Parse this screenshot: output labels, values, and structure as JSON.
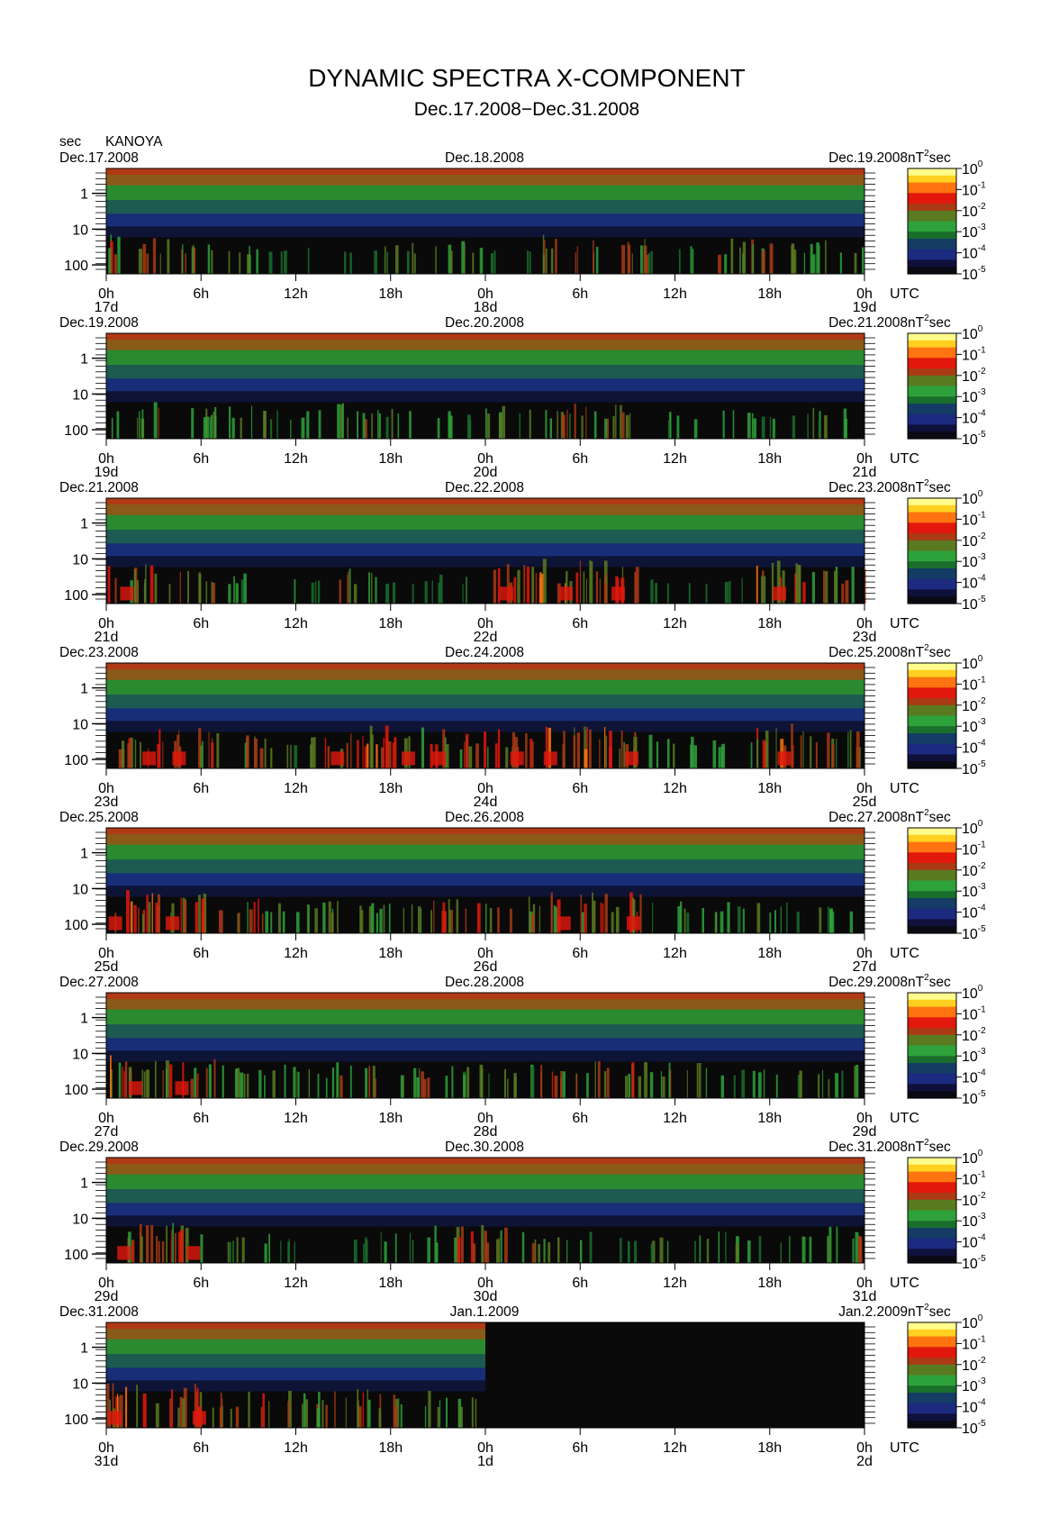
{
  "title": "DYNAMIC SPECTRA X-COMPONENT",
  "subtitle": "Dec.17.2008−Dec.31.2008",
  "station": "KANOYA",
  "y_unit": "sec",
  "colorbar_unit": "nT",
  "colorbar_unit_sup": "2",
  "colorbar_unit_suffix": "sec",
  "time_zone": "UTC",
  "colors": {
    "background": "#ffffff",
    "axis": "#000000",
    "no_data": "#0a0a0a",
    "colormap": [
      "#0a0a14",
      "#10103c",
      "#1c2a80",
      "#143c64",
      "#1a6e2c",
      "#2ea23a",
      "#5a7a20",
      "#aa3a14",
      "#e2180c",
      "#ff7410",
      "#ffd020",
      "#fffc8c"
    ]
  },
  "chart_data": {
    "type": "heatmap",
    "ylabel": "sec",
    "y_ticks": [
      "1",
      "10",
      "100"
    ],
    "y_scale": "log",
    "x_ticks": [
      "0h",
      "6h",
      "12h",
      "18h",
      "0h",
      "6h",
      "12h",
      "18h",
      "0h"
    ],
    "colorbar": {
      "label": "nT²sec",
      "scale": "log",
      "range": [
        1e-05,
        1
      ],
      "ticks": [
        {
          "base": "10",
          "exp": "0"
        },
        {
          "base": "10",
          "exp": "-1"
        },
        {
          "base": "10",
          "exp": "-2"
        },
        {
          "base": "10",
          "exp": "-3"
        },
        {
          "base": "10",
          "exp": "-4"
        },
        {
          "base": "10",
          "exp": "-5"
        }
      ]
    },
    "panels": [
      {
        "date_left": "Dec.17.2008",
        "date_mid": "Dec.18.2008",
        "date_right": "Dec.19.2008",
        "day_labels": [
          "17d",
          "18d",
          "19d"
        ],
        "data_until_hours": 48,
        "activity": [
          0.55,
          0.5,
          0.35,
          0.2,
          0.15,
          0.35,
          0.4,
          0.2,
          0.55,
          0.5,
          0.3,
          0.45,
          0.45,
          0.4
        ]
      },
      {
        "date_left": "Dec.19.2008",
        "date_mid": "Dec.20.2008",
        "date_right": "Dec.21.2008",
        "day_labels": [
          "19d",
          "20d",
          "21d"
        ],
        "data_until_hours": 48,
        "activity": [
          0.5,
          0.45,
          0.4,
          0.35,
          0.45,
          0.35,
          0.3,
          0.4,
          0.55,
          0.5,
          0.3,
          0.3,
          0.25,
          0.35
        ]
      },
      {
        "date_left": "Dec.21.2008",
        "date_mid": "Dec.22.2008",
        "date_right": "Dec.23.2008",
        "day_labels": [
          "21d",
          "22d",
          "23d"
        ],
        "data_until_hours": 48,
        "activity": [
          0.6,
          0.45,
          0.3,
          0.2,
          0.45,
          0.2,
          0.3,
          0.6,
          0.7,
          0.65,
          0.2,
          0.2,
          0.7,
          0.5
        ]
      },
      {
        "date_left": "Dec.23.2008",
        "date_mid": "Dec.24.2008",
        "date_right": "Dec.25.2008",
        "day_labels": [
          "23d",
          "24d",
          "25d"
        ],
        "data_until_hours": 48,
        "activity": [
          0.6,
          0.6,
          0.45,
          0.4,
          0.65,
          0.65,
          0.6,
          0.6,
          0.7,
          0.7,
          0.4,
          0.3,
          0.7,
          0.55
        ]
      },
      {
        "date_left": "Dec.25.2008",
        "date_mid": "Dec.26.2008",
        "date_right": "Dec.27.2008",
        "day_labels": [
          "25d",
          "26d",
          "27d"
        ],
        "data_until_hours": 48,
        "activity": [
          0.7,
          0.65,
          0.55,
          0.45,
          0.5,
          0.45,
          0.55,
          0.5,
          0.6,
          0.6,
          0.35,
          0.35,
          0.35,
          0.35
        ]
      },
      {
        "date_left": "Dec.27.2008",
        "date_mid": "Dec.28.2008",
        "date_right": "Dec.29.2008",
        "day_labels": [
          "27d",
          "28d",
          "29d"
        ],
        "data_until_hours": 48,
        "activity": [
          0.65,
          0.6,
          0.45,
          0.4,
          0.5,
          0.45,
          0.4,
          0.4,
          0.55,
          0.55,
          0.45,
          0.3,
          0.3,
          0.4
        ]
      },
      {
        "date_left": "Dec.29.2008",
        "date_mid": "Dec.30.2008",
        "date_right": "Dec.31.2008",
        "day_labels": [
          "29d",
          "30d",
          "31d"
        ],
        "data_until_hours": 48,
        "activity": [
          0.6,
          0.6,
          0.4,
          0.2,
          0.2,
          0.35,
          0.55,
          0.5,
          0.35,
          0.2,
          0.35,
          0.35,
          0.3,
          0.5
        ]
      },
      {
        "date_left": "Dec.31.2008",
        "date_mid": "Jan.1.2009",
        "date_right": "Jan.2.2009",
        "day_labels": [
          "31d",
          "1d",
          "2d"
        ],
        "data_until_hours": 24,
        "activity": [
          0.75,
          0.7,
          0.55,
          0.5,
          0.55,
          0.5,
          0.45,
          0,
          0,
          0,
          0,
          0,
          0,
          0
        ]
      }
    ]
  }
}
